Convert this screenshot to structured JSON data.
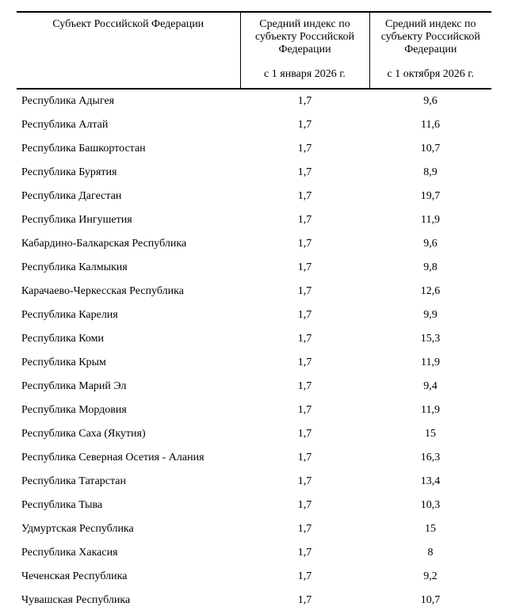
{
  "table": {
    "header": {
      "subject_col": "Субъект Российской Федерации",
      "jan_col_title": "Средний индекс по субъекту Российской Федерации",
      "jan_col_date": "с 1 января 2026 г.",
      "oct_col_title": "Средний индекс по субъекту Российской Федерации",
      "oct_col_date": "с 1 октября 2026 г."
    },
    "rows": [
      {
        "region": "Республика Адыгея",
        "jan": "1,7",
        "oct": "9,6"
      },
      {
        "region": "Республика Алтай",
        "jan": "1,7",
        "oct": "11,6"
      },
      {
        "region": "Республика Башкортостан",
        "jan": "1,7",
        "oct": "10,7"
      },
      {
        "region": "Республика Бурятия",
        "jan": "1,7",
        "oct": "8,9"
      },
      {
        "region": "Республика Дагестан",
        "jan": "1,7",
        "oct": "19,7"
      },
      {
        "region": "Республика Ингушетия",
        "jan": "1,7",
        "oct": "11,9"
      },
      {
        "region": "Кабардино-Балкарская Республика",
        "jan": "1,7",
        "oct": "9,6"
      },
      {
        "region": "Республика Калмыкия",
        "jan": "1,7",
        "oct": "9,8"
      },
      {
        "region": "Карачаево-Черкесская Республика",
        "jan": "1,7",
        "oct": "12,6"
      },
      {
        "region": "Республика Карелия",
        "jan": "1,7",
        "oct": "9,9"
      },
      {
        "region": "Республика Коми",
        "jan": "1,7",
        "oct": "15,3"
      },
      {
        "region": "Республика Крым",
        "jan": "1,7",
        "oct": "11,9"
      },
      {
        "region": "Республика Марий Эл",
        "jan": "1,7",
        "oct": "9,4"
      },
      {
        "region": "Республика Мордовия",
        "jan": "1,7",
        "oct": "11,9"
      },
      {
        "region": "Республика Саха (Якутия)",
        "jan": "1,7",
        "oct": "15"
      },
      {
        "region": "Республика Северная Осетия - Алания",
        "jan": "1,7",
        "oct": "16,3"
      },
      {
        "region": "Республика Татарстан",
        "jan": "1,7",
        "oct": "13,4"
      },
      {
        "region": "Республика Тыва",
        "jan": "1,7",
        "oct": "10,3"
      },
      {
        "region": "Удмуртская Республика",
        "jan": "1,7",
        "oct": "15"
      },
      {
        "region": "Республика Хакасия",
        "jan": "1,7",
        "oct": "8"
      },
      {
        "region": "Чеченская Республика",
        "jan": "1,7",
        "oct": "9,2"
      },
      {
        "region": "Чувашская Республика",
        "jan": "1,7",
        "oct": "10,7"
      }
    ]
  }
}
